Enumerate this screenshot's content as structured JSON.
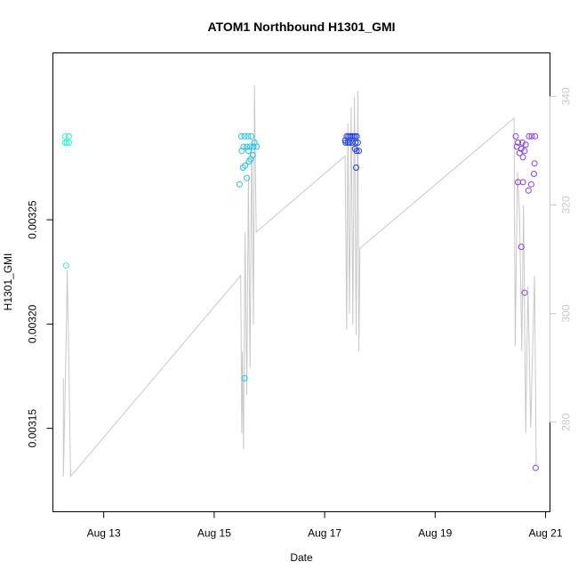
{
  "chart_data": {
    "type": "scatter",
    "title": "ATOM1 Northbound H1301_GMI",
    "xlabel": "Date",
    "ylabel": "H1301_GMI",
    "xlim": [
      12.08,
      21.08
    ],
    "ylim": [
      0.00311,
      0.00333
    ],
    "y2lim": [
      263.5,
      348
    ],
    "x_ticks": [
      {
        "value": 13,
        "label": "Aug 13"
      },
      {
        "value": 15,
        "label": "Aug 15"
      },
      {
        "value": 17,
        "label": "Aug 17"
      },
      {
        "value": 19,
        "label": "Aug 19"
      },
      {
        "value": 21,
        "label": "Aug 21"
      }
    ],
    "y_ticks": [
      {
        "value": 0.00315,
        "label": "0.00315"
      },
      {
        "value": 0.0032,
        "label": "0.00320"
      },
      {
        "value": 0.00325,
        "label": "0.00325"
      }
    ],
    "y2_ticks": [
      {
        "value": 280,
        "label": "280"
      },
      {
        "value": 300,
        "label": "300"
      },
      {
        "value": 320,
        "label": "320"
      },
      {
        "value": 340,
        "label": "340"
      }
    ],
    "series": [
      {
        "color": "#2cf4c4",
        "points": [
          [
            12.3,
            0.00329
          ],
          [
            12.37,
            0.00329
          ],
          [
            12.3,
            0.003287
          ],
          [
            12.33,
            0.003287
          ],
          [
            12.37,
            0.003287
          ],
          [
            12.32,
            0.003228
          ]
        ]
      },
      {
        "color": "#22c0ee",
        "points": [
          [
            15.49,
            0.00329
          ],
          [
            15.55,
            0.00329
          ],
          [
            15.61,
            0.00329
          ],
          [
            15.67,
            0.00329
          ],
          [
            15.73,
            0.003287
          ],
          [
            15.53,
            0.003285
          ],
          [
            15.59,
            0.003285
          ],
          [
            15.65,
            0.003285
          ],
          [
            15.71,
            0.003285
          ],
          [
            15.77,
            0.003285
          ],
          [
            15.5,
            0.003283
          ],
          [
            15.62,
            0.003283
          ],
          [
            15.7,
            0.003281
          ],
          [
            15.66,
            0.003279
          ],
          [
            15.63,
            0.003278
          ],
          [
            15.56,
            0.003276
          ],
          [
            15.52,
            0.003275
          ],
          [
            15.59,
            0.00327
          ],
          [
            15.46,
            0.003267
          ],
          [
            15.55,
            0.003174
          ]
        ]
      },
      {
        "color": "#1f3ee8",
        "points": [
          [
            17.37,
            0.003288
          ],
          [
            17.4,
            0.00329
          ],
          [
            17.43,
            0.00329
          ],
          [
            17.46,
            0.00329
          ],
          [
            17.49,
            0.00329
          ],
          [
            17.52,
            0.00329
          ],
          [
            17.55,
            0.00329
          ],
          [
            17.58,
            0.00329
          ],
          [
            17.38,
            0.003287
          ],
          [
            17.42,
            0.003287
          ],
          [
            17.45,
            0.003287
          ],
          [
            17.5,
            0.003287
          ],
          [
            17.56,
            0.003287
          ],
          [
            17.6,
            0.003287
          ],
          [
            17.55,
            0.003284
          ],
          [
            17.58,
            0.003283
          ],
          [
            17.62,
            0.003283
          ],
          [
            17.57,
            0.003275
          ]
        ]
      },
      {
        "color": "#8a3bee",
        "points": [
          [
            20.46,
            0.00329
          ],
          [
            20.7,
            0.00329
          ],
          [
            20.75,
            0.00329
          ],
          [
            20.81,
            0.00329
          ],
          [
            20.5,
            0.003287
          ],
          [
            20.58,
            0.003287
          ],
          [
            20.64,
            0.003286
          ],
          [
            20.48,
            0.003285
          ],
          [
            20.56,
            0.003284
          ],
          [
            20.62,
            0.003283
          ],
          [
            20.53,
            0.003282
          ],
          [
            20.59,
            0.00328
          ],
          [
            20.8,
            0.003277
          ],
          [
            20.79,
            0.003272
          ],
          [
            20.5,
            0.003268
          ],
          [
            20.59,
            0.003268
          ],
          [
            20.74,
            0.003267
          ],
          [
            20.69,
            0.003264
          ],
          [
            20.56,
            0.003237
          ],
          [
            20.62,
            0.003215
          ],
          [
            20.82,
            0.003131
          ]
        ]
      }
    ],
    "line_series": {
      "color": "#c8c8c8",
      "axis": "right",
      "points": [
        [
          12.27,
          288
        ],
        [
          12.27,
          270
        ],
        [
          12.32,
          295
        ],
        [
          12.34,
          308
        ],
        [
          12.37,
          290
        ],
        [
          12.4,
          270
        ],
        [
          15.48,
          307
        ],
        [
          15.5,
          278
        ],
        [
          15.51,
          293
        ],
        [
          15.53,
          275
        ],
        [
          15.56,
          315
        ],
        [
          15.59,
          285
        ],
        [
          15.62,
          325
        ],
        [
          15.65,
          290
        ],
        [
          15.68,
          332
        ],
        [
          15.71,
          298
        ],
        [
          15.73,
          342
        ],
        [
          15.76,
          315
        ],
        [
          17.37,
          329
        ],
        [
          17.4,
          297
        ],
        [
          17.42,
          335
        ],
        [
          17.45,
          300
        ],
        [
          17.48,
          338
        ],
        [
          17.51,
          298
        ],
        [
          17.54,
          340
        ],
        [
          17.57,
          296
        ],
        [
          17.6,
          341
        ],
        [
          17.62,
          293
        ],
        [
          17.64,
          312
        ],
        [
          20.43,
          336
        ],
        [
          20.45,
          294
        ],
        [
          20.49,
          326
        ],
        [
          20.53,
          318
        ],
        [
          20.57,
          293
        ],
        [
          20.6,
          320
        ],
        [
          20.64,
          278
        ],
        [
          20.68,
          305
        ],
        [
          20.73,
          279
        ],
        [
          20.8,
          307
        ],
        [
          20.83,
          272
        ]
      ]
    },
    "grid": false,
    "legend": false
  }
}
